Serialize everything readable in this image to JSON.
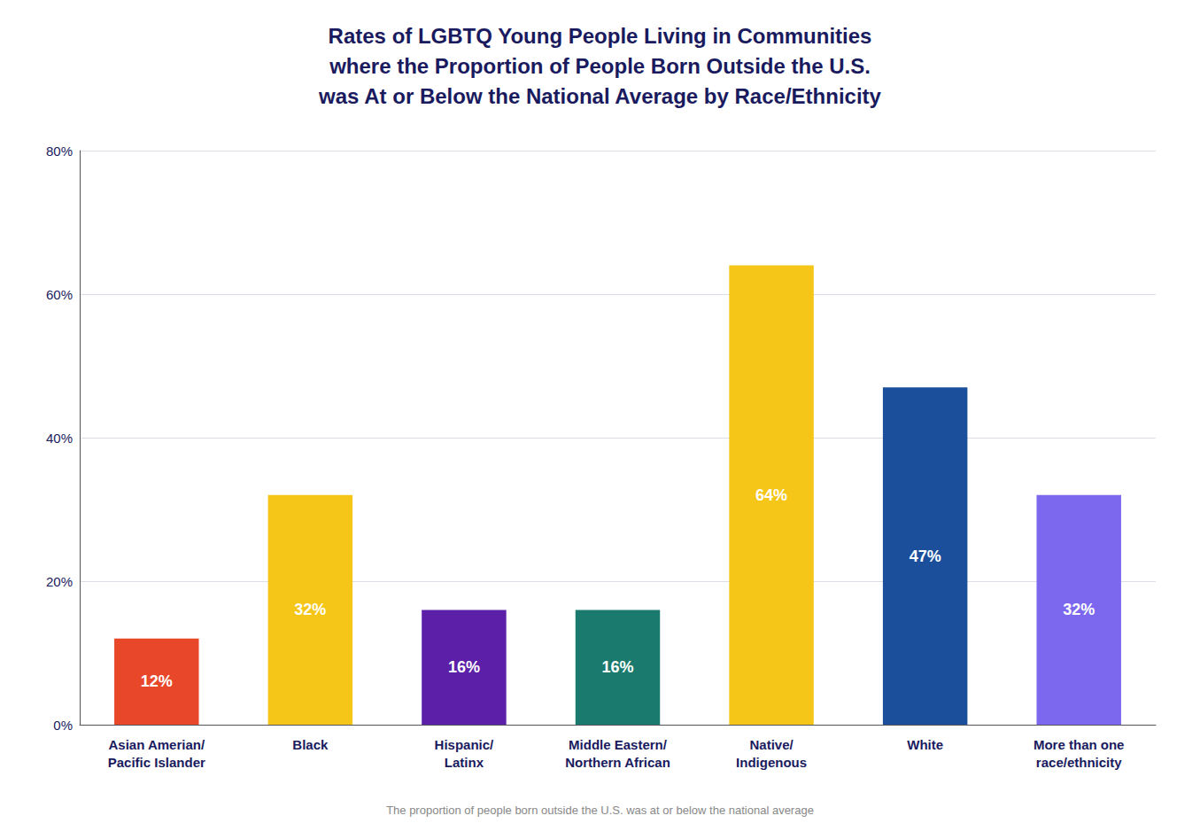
{
  "chart_data": {
    "type": "bar",
    "title": "Rates of LGBTQ Young People Living in Communities\nwhere the Proportion of People Born Outside the U.S.\nwas At or Below the National Average by Race/Ethnicity",
    "categories": [
      "Asian Amerian/\nPacific Islander",
      "Black",
      "Hispanic/\nLatinx",
      "Middle Eastern/\nNorthern African",
      "Native/\nIndigenous",
      "White",
      "More than one\nrace/ethnicity"
    ],
    "values": [
      12,
      32,
      16,
      16,
      64,
      47,
      32
    ],
    "value_labels": [
      "12%",
      "32%",
      "16%",
      "16%",
      "64%",
      "47%",
      "32%"
    ],
    "data_labels": true,
    "colors": [
      "#E8472A",
      "#F5C518",
      "#5B1FA8",
      "#1A7A6E",
      "#F5C518",
      "#1B4F9C",
      "#7B68EE"
    ],
    "ylim": [
      0,
      80
    ],
    "yticks": [
      {
        "value": 0,
        "label": "0%"
      },
      {
        "value": 20,
        "label": "20%"
      },
      {
        "value": 40,
        "label": "40%"
      },
      {
        "value": 60,
        "label": "60%"
      },
      {
        "value": 80,
        "label": "80%"
      }
    ],
    "grid": true,
    "annotations": [
      "The proportion of people born outside the U.S. was at or below the national average"
    ]
  }
}
